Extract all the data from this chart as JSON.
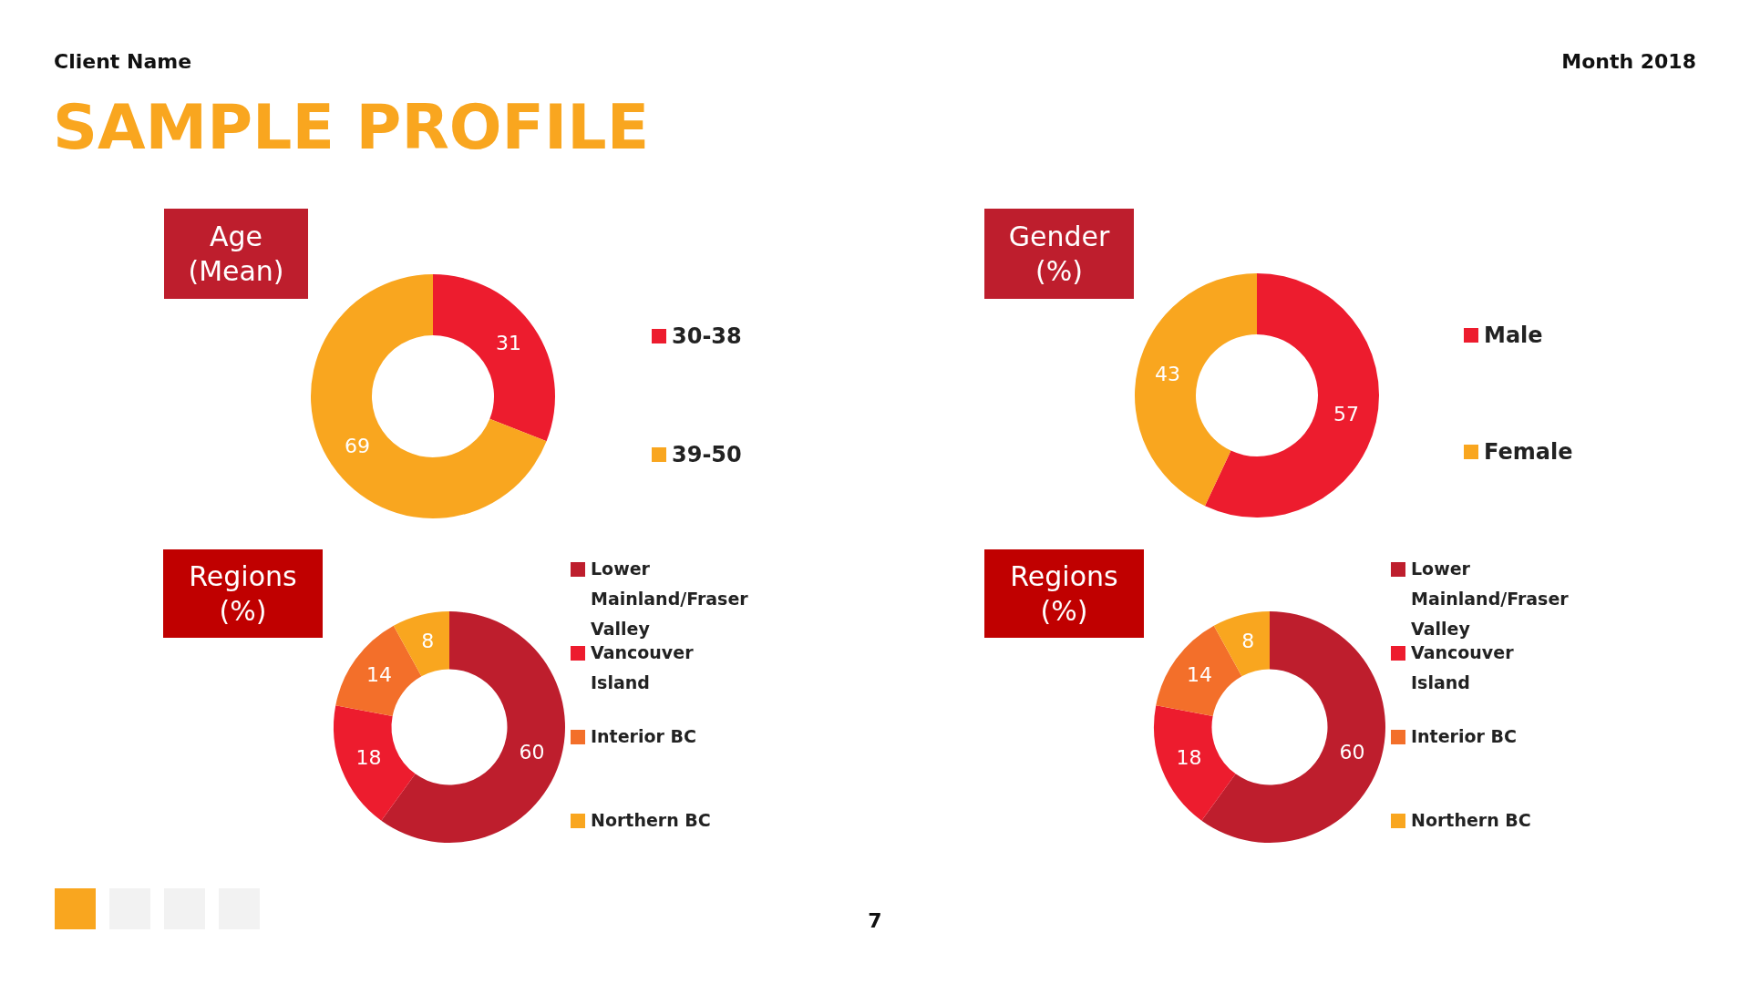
{
  "chart_data": [
    {
      "type": "other",
      "title": "SAMPLE PROFILE",
      "annotations": [
        "Client Name",
        "Month 2018",
        "7"
      ]
    },
    {
      "type": "donut",
      "title": "Age (Mean)",
      "categories": [
        "30-38",
        "39-50"
      ],
      "values": [
        31,
        69
      ],
      "colors": [
        "#ed1c2e",
        "#f9a61f"
      ],
      "data_labels": true,
      "legend": "right"
    },
    {
      "type": "donut",
      "title": "Gender (%)",
      "categories": [
        "Male",
        "Female"
      ],
      "values": [
        57,
        43
      ],
      "colors": [
        "#ed1c2e",
        "#f9a61f"
      ],
      "data_labels": true,
      "legend": "right"
    },
    {
      "type": "donut",
      "title": "Regions (%)",
      "categories": [
        "Lower Mainland/Fraser Valley",
        "Vancouver Island",
        "Interior BC",
        "Northern BC"
      ],
      "values": [
        60,
        18,
        14,
        8
      ],
      "colors": [
        "#be1e2d",
        "#ed1c2e",
        "#f36f2a",
        "#f9a61f"
      ],
      "data_labels": true,
      "legend": "right"
    },
    {
      "type": "donut",
      "title": "Regions (%)",
      "categories": [
        "Lower Mainland/Fraser Valley",
        "Vancouver Island",
        "Interior BC",
        "Northern BC"
      ],
      "values": [
        60,
        18,
        14,
        8
      ],
      "colors": [
        "#be1e2d",
        "#ed1c2e",
        "#f36f2a",
        "#f9a61f"
      ],
      "data_labels": true,
      "legend": "right"
    }
  ]
}
